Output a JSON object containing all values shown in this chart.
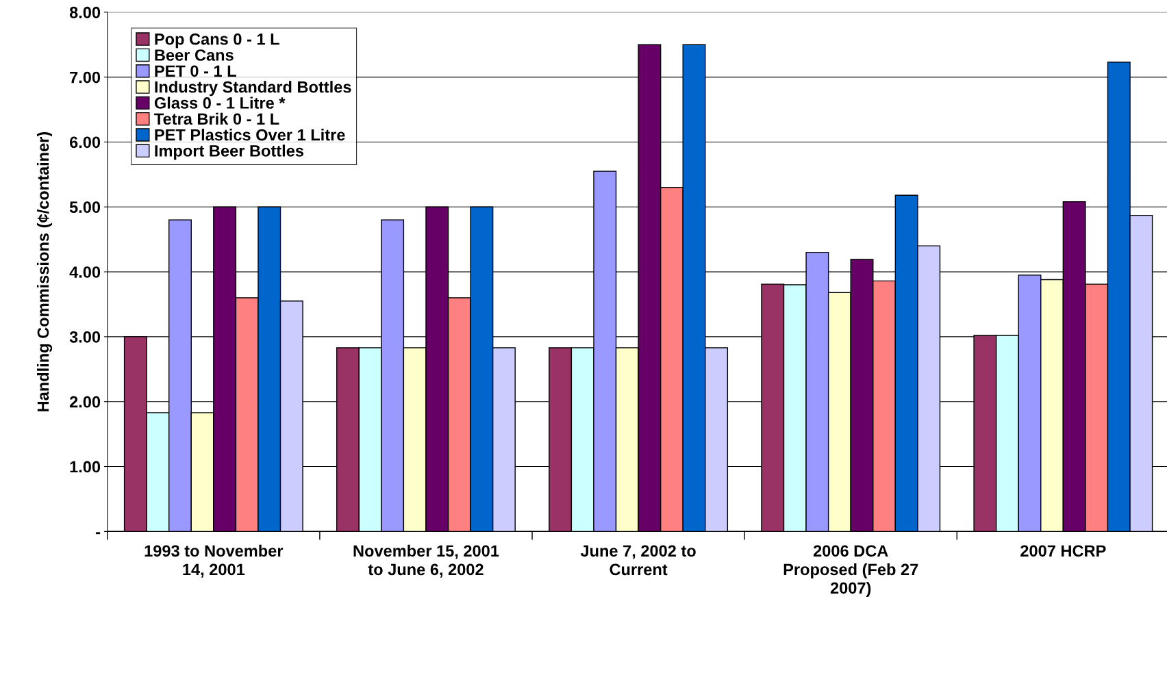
{
  "chart_data": {
    "type": "bar",
    "ylabel": "Handling Commissions (¢/container)",
    "categories": [
      "1993 to November\n14, 2001",
      "November 15, 2001\nto June 6, 2002",
      "June 7, 2002 to\nCurrent",
      "2006 DCA\nProposed (Feb 27\n2007)",
      "2007 HCRP"
    ],
    "series": [
      {
        "name": "Pop Cans 0 - 1 L",
        "color": "#993366",
        "values": [
          3.0,
          2.83,
          2.83,
          3.81,
          3.02
        ]
      },
      {
        "name": "Beer Cans",
        "color": "#ccffff",
        "values": [
          1.83,
          2.83,
          2.83,
          3.8,
          3.02
        ]
      },
      {
        "name": "PET 0 - 1 L",
        "color": "#9999ff",
        "values": [
          4.8,
          4.8,
          5.55,
          4.3,
          3.95
        ]
      },
      {
        "name": "Industry Standard Bottles",
        "color": "#ffffcc",
        "values": [
          1.83,
          2.83,
          2.83,
          3.68,
          3.88
        ]
      },
      {
        "name": "Glass 0 - 1 Litre *",
        "color": "#660066",
        "values": [
          5.0,
          5.0,
          7.5,
          4.19,
          5.08
        ]
      },
      {
        "name": "Tetra Brik 0 - 1 L",
        "color": "#ff8080",
        "values": [
          3.6,
          3.6,
          5.3,
          3.86,
          3.81
        ]
      },
      {
        "name": "PET Plastics Over 1 Litre",
        "color": "#0066cc",
        "values": [
          5.0,
          5.0,
          7.5,
          5.18,
          7.23
        ]
      },
      {
        "name": "Import Beer Bottles",
        "color": "#ccccff",
        "values": [
          3.55,
          2.83,
          2.83,
          4.4,
          4.87
        ]
      }
    ],
    "ylim": [
      0,
      8
    ],
    "yticks": [
      {
        "value": 0,
        "label": "-"
      },
      {
        "value": 1,
        "label": "1.00"
      },
      {
        "value": 2,
        "label": "2.00"
      },
      {
        "value": 3,
        "label": "3.00"
      },
      {
        "value": 4,
        "label": "4.00"
      },
      {
        "value": 5,
        "label": "5.00"
      },
      {
        "value": 6,
        "label": "6.00"
      },
      {
        "value": 7,
        "label": "7.00"
      },
      {
        "value": 8,
        "label": "8.00"
      }
    ],
    "grid": "y",
    "legend": "top left"
  }
}
